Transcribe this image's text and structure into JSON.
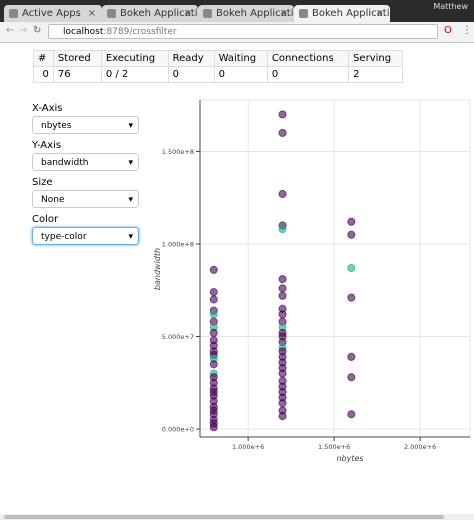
{
  "browser": {
    "tabs": [
      "Active Apps",
      "Bokeh Applicati",
      "Bokeh Applicati",
      "Bokeh Applicati"
    ],
    "user": "Matthew",
    "url_host": "localhost",
    "url_rest": ":8789/crossfilter"
  },
  "table": {
    "header": [
      "#",
      "Stored",
      "Executing",
      "Ready",
      "Waiting",
      "Connections",
      "Serving"
    ],
    "rows": [
      [
        "0",
        "76",
        "0 / 2",
        "0",
        "0",
        "0",
        "2"
      ]
    ]
  },
  "controls": [
    {
      "label": "X-Axis",
      "value": "nbytes"
    },
    {
      "label": "Y-Axis",
      "value": "bandwidth"
    },
    {
      "label": "Size",
      "value": "None"
    },
    {
      "label": "Color",
      "value": "type-color"
    }
  ],
  "chart_data": {
    "type": "scatter",
    "x_label": "nbytes",
    "y_label": "bandwidth",
    "xlim": [
      720000,
      2290000
    ],
    "ylim": [
      -4300000,
      177800000
    ],
    "xticks": [
      {
        "value": 1000000,
        "label": "1.000e+6"
      },
      {
        "value": 1500000,
        "label": "1.500e+6"
      },
      {
        "value": 2000000,
        "label": "2.000e+6"
      }
    ],
    "yticks": [
      {
        "value": 0,
        "label": "0.000e+0"
      },
      {
        "value": 50000000,
        "label": "5.000e+7"
      },
      {
        "value": 100000000,
        "label": "1.000e+8"
      },
      {
        "value": 150000000,
        "label": "1.500e+8"
      }
    ],
    "grid": true,
    "opacity": 0.6,
    "x": [
      800000,
      800000,
      800000,
      800000,
      800000,
      800000,
      800000,
      800000,
      800000,
      800000,
      800000,
      800000,
      800000,
      800000,
      800000,
      800000,
      800000,
      800000,
      800000,
      800000,
      800000,
      800000,
      800000,
      800000,
      800000,
      800000,
      800000,
      1200000,
      1200000,
      1200000,
      1200000,
      1200000,
      1200000,
      1200000,
      1200000,
      1200000,
      1200000,
      1200000,
      1200000,
      1200000,
      1200000,
      1200000,
      1200000,
      1200000,
      1200000,
      1200000,
      1200000,
      1200000,
      1200000,
      1200000,
      1200000,
      1200000,
      1200000,
      1200000,
      1200000,
      1600000,
      1600000,
      1600000,
      1600000,
      1600000,
      1600000,
      1600000
    ],
    "values": [
      86000000,
      74000000,
      70000000,
      64000000,
      62000000,
      58000000,
      55000000,
      52000000,
      48000000,
      45000000,
      42000000,
      40000000,
      38000000,
      35000000,
      30000000,
      28000000,
      25000000,
      22000000,
      20000000,
      18000000,
      15000000,
      12000000,
      10000000,
      8000000,
      5000000,
      3000000,
      1000000,
      170000000,
      160000000,
      127000000,
      110000000,
      108000000,
      81000000,
      76000000,
      72000000,
      65000000,
      62000000,
      58000000,
      55000000,
      52000000,
      50000000,
      47000000,
      44000000,
      42000000,
      39000000,
      36000000,
      33000000,
      30000000,
      26000000,
      23000000,
      20000000,
      17000000,
      14000000,
      10000000,
      7000000,
      112000000,
      105000000,
      87000000,
      71000000,
      39000000,
      28000000,
      8000000
    ],
    "colors": [
      "#440154",
      "#440154",
      "#440154",
      "#440154",
      "#21a685",
      "#440154",
      "#21a685",
      "#440154",
      "#440154",
      "#440154",
      "#440154",
      "#440154",
      "#21a685",
      "#440154",
      "#21a685",
      "#440154",
      "#440154",
      "#440154",
      "#440154",
      "#440154",
      "#440154",
      "#440154",
      "#440154",
      "#440154",
      "#440154",
      "#440154",
      "#440154",
      "#440154",
      "#440154",
      "#440154",
      "#440154",
      "#21a685",
      "#440154",
      "#440154",
      "#440154",
      "#440154",
      "#440154",
      "#440154",
      "#21a685",
      "#440154",
      "#440154",
      "#440154",
      "#21a685",
      "#440154",
      "#440154",
      "#440154",
      "#440154",
      "#440154",
      "#440154",
      "#440154",
      "#440154",
      "#440154",
      "#440154",
      "#440154",
      "#440154",
      "#440154",
      "#440154",
      "#21a685",
      "#440154",
      "#440154",
      "#440154",
      "#440154"
    ]
  }
}
